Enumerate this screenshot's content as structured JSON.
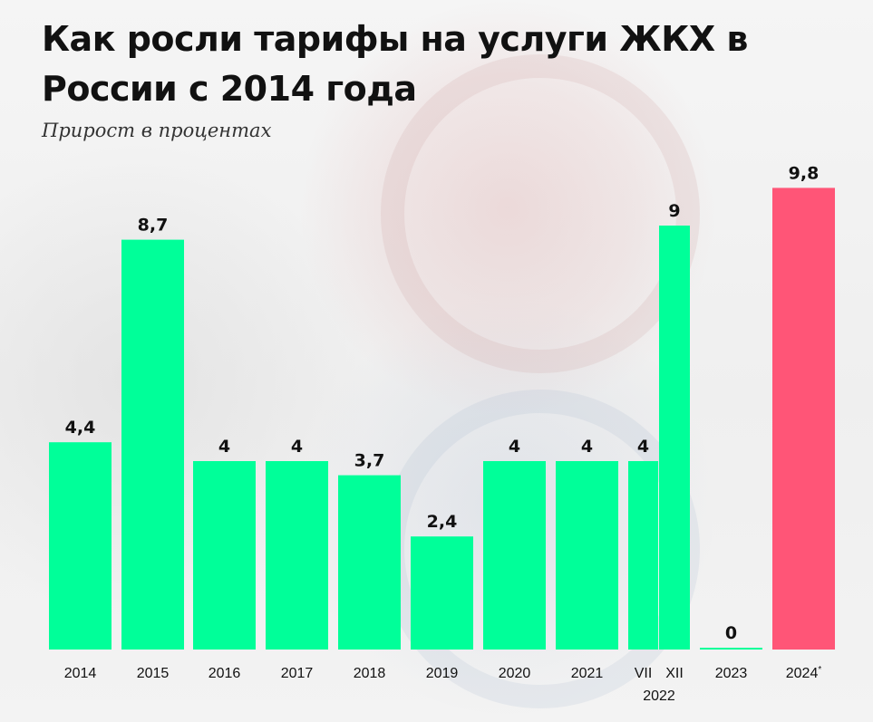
{
  "chart_data": {
    "type": "bar",
    "title": "Как росли тарифы на услуги ЖКХ в России с 2014 года",
    "subtitle": "Прирост в процентах",
    "ylim": [
      0,
      10.5
    ],
    "grid": false,
    "legend": "none",
    "colors": {
      "default": "#00ff99",
      "highlight": "#ff5577"
    },
    "bars": [
      {
        "category": "2014",
        "value": 4.4,
        "label": "4,4"
      },
      {
        "category": "2015",
        "value": 8.7,
        "label": "8,7"
      },
      {
        "category": "2016",
        "value": 4.0,
        "label": "4"
      },
      {
        "category": "2017",
        "value": 4.0,
        "label": "4"
      },
      {
        "category": "2018",
        "value": 3.7,
        "label": "3,7"
      },
      {
        "category": "2019",
        "value": 2.4,
        "label": "2,4"
      },
      {
        "category": "2020",
        "value": 4.0,
        "label": "4"
      },
      {
        "category": "2021",
        "value": 4.0,
        "label": "4"
      },
      {
        "category": "VII",
        "group": "2022",
        "value": 4.0,
        "label": "4"
      },
      {
        "category": "XII",
        "group": "2022",
        "value": 9.0,
        "label": "9"
      },
      {
        "category": "2023",
        "value": 0,
        "label": "0"
      },
      {
        "category": "2024*",
        "value": 9.8,
        "label": "9,8",
        "highlight": true
      }
    ],
    "group_labels": [
      {
        "label": "2022",
        "categories": [
          "VII",
          "XII"
        ]
      }
    ]
  }
}
